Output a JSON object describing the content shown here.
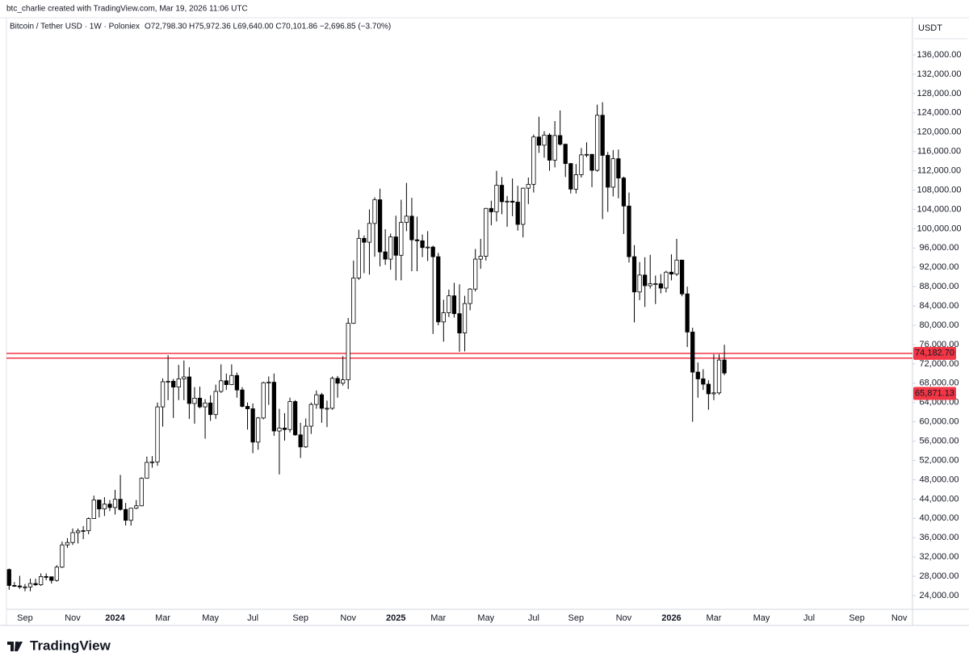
{
  "chart_data": {
    "type": "candlestick",
    "credit": "btc_charlie created with TradingView.com, Mar 19, 2026 11:06 UTC",
    "title": "Bitcoin / Tether USD · 1W · Poloniex",
    "subtitle": "O72,798.30 H75,972.36 L69,640.00 C70,101.86 −2,696.85 (−3.70%)",
    "unit": "USDT",
    "brand": "TradingView",
    "up_color": "#ffffff",
    "down_color": "#000000",
    "wick_color": "#000000",
    "grid": false,
    "categories": [
      null,
      null,
      null,
      "Sep",
      null,
      null,
      null,
      null,
      null,
      null,
      null,
      null,
      "Nov",
      null,
      null,
      null,
      null,
      null,
      null,
      null,
      "2024",
      null,
      null,
      null,
      null,
      null,
      null,
      null,
      null,
      "Mar",
      null,
      null,
      null,
      null,
      null,
      null,
      null,
      null,
      "May",
      null,
      null,
      null,
      null,
      null,
      null,
      null,
      "Jul",
      null,
      null,
      null,
      null,
      null,
      null,
      null,
      null,
      "Sep",
      null,
      null,
      null,
      null,
      null,
      null,
      null,
      null,
      "Nov",
      null,
      null,
      null,
      null,
      null,
      null,
      null,
      null,
      "2025",
      null,
      null,
      null,
      null,
      null,
      null,
      null,
      "Mar",
      null,
      null,
      null,
      null,
      null,
      null,
      null,
      null,
      "May",
      null,
      null,
      null,
      null,
      null,
      null,
      null,
      null,
      "Jul",
      null,
      null,
      null,
      null,
      null,
      null,
      null,
      "Sep",
      null,
      null,
      null,
      null,
      null,
      null,
      null,
      null,
      "Nov",
      null,
      null,
      null,
      null,
      null,
      null,
      null,
      null,
      "2026",
      null,
      null,
      null,
      null,
      null,
      null,
      null,
      "Mar",
      null,
      null,
      null,
      null,
      null,
      null,
      null,
      null,
      "May",
      null,
      null,
      null,
      null,
      null,
      null,
      null,
      null,
      "Jul",
      null,
      null,
      null,
      null,
      null,
      null,
      null,
      null,
      "Sep",
      null,
      null,
      null,
      null,
      null,
      null,
      null,
      "Nov",
      null,
      null
    ],
    "open": [
      29400,
      26100,
      26000,
      25800,
      25800,
      26500,
      26250,
      27950,
      27900,
      27150,
      29900,
      34500,
      35000,
      37050,
      37400,
      37450,
      39950,
      43800,
      41950,
      42950,
      42250,
      43950,
      41850,
      39600,
      42100,
      42600,
      48300,
      51600,
      51700,
      63100,
      68300,
      68400,
      67200,
      68900,
      69300,
      63800,
      64900,
      63100,
      63900,
      61500,
      66300,
      68500,
      67700,
      69600,
      66600,
      63200,
      62700,
      55800,
      60800,
      68100,
      68200,
      58100,
      58700,
      58400,
      64200,
      57300,
      54800,
      59100,
      63600,
      65600,
      62800,
      62800,
      69000,
      68000,
      68700,
      80400,
      89800,
      98000,
      97200,
      101100,
      106000,
      95200,
      93700,
      98300,
      94500,
      101300,
      102600,
      97700,
      97500,
      96100,
      96200,
      94200,
      80700,
      82600,
      86100,
      82400,
      78400,
      84500,
      87500,
      93700,
      94300,
      104200,
      103500,
      109000,
      105600,
      105700,
      105500,
      100900,
      108400,
      109200,
      119000,
      117300,
      119400,
      114200,
      119300,
      117500,
      113500,
      108200,
      111200,
      115300,
      115400,
      112100,
      123500,
      115200,
      108600,
      114500,
      110500,
      104700,
      94200,
      86900,
      90400,
      88200,
      88600,
      88600,
      87700,
      91000,
      90600,
      93500,
      86500,
      78600,
      70300,
      68900,
      67800,
      65800,
      66000,
      72798.3,
      null,
      null,
      null,
      null,
      null,
      null,
      null,
      null,
      null,
      null,
      null,
      null,
      null,
      null,
      null,
      null,
      null,
      null,
      null,
      null,
      null,
      null,
      null,
      null,
      null,
      null,
      null,
      null,
      null,
      null,
      null,
      null,
      null,
      null,
      null
    ],
    "high": [
      29600,
      26800,
      28100,
      26400,
      27500,
      27500,
      28600,
      28600,
      27900,
      30300,
      35200,
      35900,
      37900,
      37900,
      38400,
      40200,
      44700,
      43800,
      44400,
      43800,
      45900,
      49000,
      43200,
      42200,
      43800,
      48500,
      52800,
      52900,
      64000,
      69000,
      73800,
      68900,
      71800,
      72700,
      71300,
      67200,
      67300,
      64700,
      65500,
      67700,
      71900,
      70000,
      71900,
      70200,
      67200,
      64000,
      63800,
      61000,
      68300,
      69400,
      70000,
      62700,
      61800,
      65000,
      64500,
      59800,
      60700,
      64000,
      66500,
      66000,
      64400,
      69400,
      69500,
      73600,
      81500,
      93400,
      99800,
      98600,
      104000,
      106500,
      108300,
      99900,
      99000,
      102700,
      106000,
      109500,
      106400,
      102500,
      98800,
      99500,
      96500,
      95000,
      85300,
      87400,
      88800,
      88500,
      86100,
      87700,
      95800,
      97900,
      104300,
      105800,
      112000,
      110700,
      106800,
      110400,
      108900,
      108500,
      110600,
      119500,
      123200,
      120200,
      119800,
      122300,
      124500,
      117600,
      113600,
      113400,
      116700,
      117900,
      115500,
      125700,
      126200,
      115900,
      116300,
      116400,
      110800,
      107500,
      96600,
      93100,
      94100,
      94600,
      90300,
      90600,
      91300,
      94700,
      97900,
      93500,
      88000,
      79500,
      72300,
      70900,
      68600,
      74000,
      74000,
      75972.36,
      null,
      null,
      null,
      null,
      null,
      null,
      null,
      null,
      null,
      null,
      null,
      null,
      null,
      null,
      null,
      null,
      null,
      null,
      null,
      null,
      null,
      null,
      null,
      null,
      null,
      null,
      null,
      null,
      null,
      null,
      null,
      null,
      null,
      null,
      null
    ],
    "low": [
      25200,
      25800,
      25400,
      24900,
      24900,
      26000,
      26000,
      27200,
      26500,
      26900,
      29700,
      33900,
      34500,
      34800,
      35700,
      36700,
      39950,
      40200,
      40500,
      41500,
      40800,
      41600,
      38500,
      38500,
      41900,
      42500,
      48300,
      50500,
      50900,
      59000,
      64500,
      60800,
      64500,
      64500,
      60600,
      59600,
      62800,
      56500,
      60200,
      60600,
      66000,
      66600,
      67600,
      65000,
      63000,
      58400,
      53500,
      54200,
      60500,
      63500,
      57100,
      49100,
      56100,
      57800,
      57100,
      52500,
      54600,
      57500,
      62700,
      59800,
      58900,
      62500,
      65000,
      67500,
      66800,
      80300,
      89400,
      90800,
      90500,
      94200,
      92200,
      92500,
      91500,
      89300,
      89300,
      99500,
      91200,
      91200,
      94100,
      93300,
      78200,
      80000,
      76600,
      81700,
      81600,
      74500,
      74600,
      83100,
      87000,
      91700,
      93400,
      100700,
      101500,
      103000,
      100400,
      102600,
      99600,
      98200,
      105100,
      107500,
      115700,
      114700,
      112000,
      112700,
      117200,
      110700,
      107300,
      107300,
      110600,
      114800,
      108600,
      111800,
      102000,
      103500,
      106700,
      106300,
      98900,
      93000,
      80600,
      85200,
      83800,
      87600,
      84400,
      86600,
      86800,
      89300,
      90200,
      86000,
      75500,
      60000,
      65000,
      66600,
      62500,
      64500,
      65600,
      69640,
      null,
      null,
      null,
      null,
      null,
      null,
      null,
      null,
      null,
      null,
      null,
      null,
      null,
      null,
      null,
      null,
      null,
      null,
      null,
      null,
      null,
      null,
      null,
      null,
      null,
      null,
      null,
      null,
      null,
      null,
      null,
      null,
      null,
      null,
      null
    ],
    "close": [
      26100,
      26000,
      25800,
      25800,
      26500,
      26250,
      27950,
      27900,
      27150,
      29900,
      34500,
      35000,
      37050,
      37400,
      37450,
      39950,
      43800,
      41950,
      42950,
      42250,
      43950,
      41850,
      39600,
      42100,
      42600,
      48300,
      51600,
      51700,
      63100,
      68300,
      68400,
      67200,
      68900,
      69300,
      63800,
      64900,
      63100,
      63900,
      61500,
      66300,
      68500,
      67700,
      69600,
      66600,
      63200,
      62700,
      55800,
      60800,
      68100,
      68200,
      58100,
      58700,
      58400,
      64200,
      57300,
      54800,
      59100,
      63600,
      65600,
      62800,
      62800,
      69000,
      68000,
      68700,
      80400,
      89800,
      98000,
      97200,
      101100,
      106000,
      95200,
      93700,
      98300,
      94500,
      101300,
      102600,
      97700,
      97500,
      96100,
      96200,
      94200,
      80700,
      82600,
      86100,
      82400,
      78400,
      84500,
      87500,
      93700,
      94300,
      104200,
      103500,
      109000,
      105600,
      105700,
      105500,
      100900,
      108400,
      109200,
      119000,
      117300,
      119400,
      114200,
      119300,
      117500,
      113500,
      108200,
      111200,
      115300,
      115400,
      112100,
      123500,
      115200,
      108600,
      114500,
      110500,
      104700,
      94200,
      86900,
      90400,
      88200,
      88600,
      88600,
      87700,
      91000,
      90600,
      93500,
      86500,
      78600,
      70300,
      68900,
      67800,
      65800,
      66000,
      72798.3,
      70101.86,
      null,
      null,
      null,
      null,
      null,
      null,
      null,
      null,
      null,
      null,
      null,
      null,
      null,
      null,
      null,
      null,
      null,
      null,
      null,
      null,
      null,
      null,
      null,
      null,
      null,
      null,
      null,
      null,
      null,
      null,
      null,
      null,
      null,
      null,
      null
    ],
    "ylim": [
      21160,
      143700
    ],
    "yticks": [
      {
        "value": 24000,
        "label": "24,000.00"
      },
      {
        "value": 28000,
        "label": "28,000.00"
      },
      {
        "value": 32000,
        "label": "32,000.00"
      },
      {
        "value": 36000,
        "label": "36,000.00"
      },
      {
        "value": 40000,
        "label": "40,000.00"
      },
      {
        "value": 44000,
        "label": "44,000.00"
      },
      {
        "value": 48000,
        "label": "48,000.00"
      },
      {
        "value": 52000,
        "label": "52,000.00"
      },
      {
        "value": 56000,
        "label": "56,000.00"
      },
      {
        "value": 60000,
        "label": "60,000.00"
      },
      {
        "value": 64000,
        "label": "64,000.00"
      },
      {
        "value": 68000,
        "label": "68,000.00"
      },
      {
        "value": 72000,
        "label": "72,000.00"
      },
      {
        "value": 76000,
        "label": "76,000.00"
      },
      {
        "value": 80000,
        "label": "80,000.00"
      },
      {
        "value": 84000,
        "label": "84,000.00"
      },
      {
        "value": 88000,
        "label": "88,000.00"
      },
      {
        "value": 92000,
        "label": "92,000.00"
      },
      {
        "value": 96000,
        "label": "96,000.00"
      },
      {
        "value": 100000,
        "label": "100,000.00"
      },
      {
        "value": 104000,
        "label": "104,000.00"
      },
      {
        "value": 108000,
        "label": "108,000.00"
      },
      {
        "value": 112000,
        "label": "112,000.00"
      },
      {
        "value": 116000,
        "label": "116,000.00"
      },
      {
        "value": 120000,
        "label": "120,000.00"
      },
      {
        "value": 124000,
        "label": "124,000.00"
      },
      {
        "value": 128000,
        "label": "128,000.00"
      },
      {
        "value": 132000,
        "label": "132,000.00"
      },
      {
        "value": 136000,
        "label": "136,000.00"
      }
    ],
    "hlines": [
      74182.7,
      73200
    ],
    "hline_color": "#f23645",
    "price_labels": [
      {
        "value": 74182.7,
        "label": "74,182.70"
      },
      {
        "value": 65871.13,
        "label": "65,871.13"
      }
    ],
    "price_label_color": "#f23645"
  }
}
